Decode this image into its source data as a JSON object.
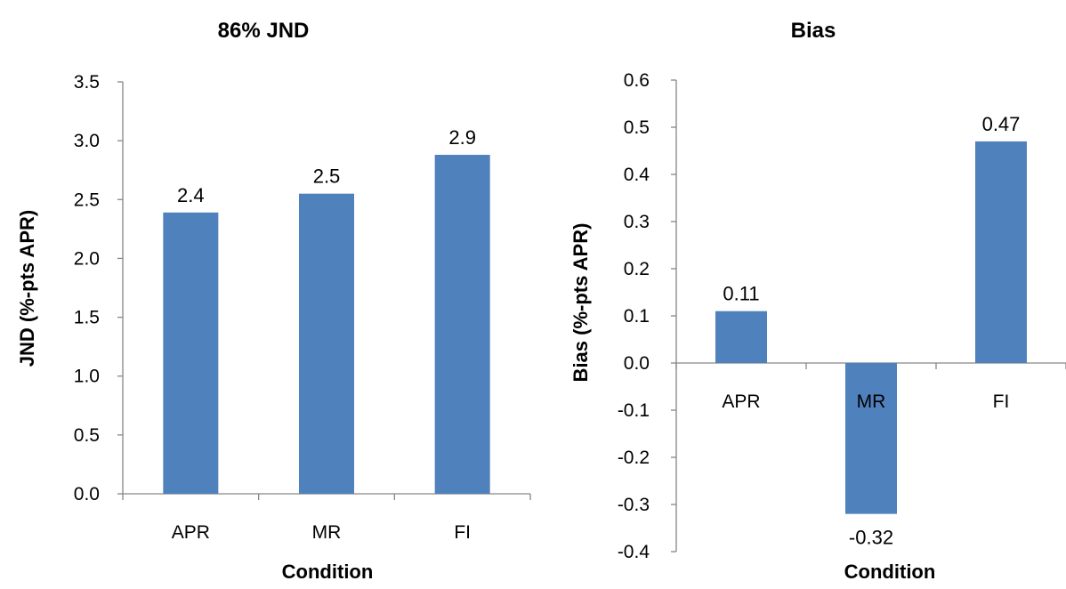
{
  "chart_data": [
    {
      "type": "bar",
      "title": "86% JND",
      "xlabel": "Condition",
      "ylabel": "JND (%-pts APR)",
      "categories": [
        "APR",
        "MR",
        "FI"
      ],
      "values": [
        2.39,
        2.55,
        2.88
      ],
      "data_labels": [
        "2.4",
        "2.5",
        "2.9"
      ],
      "ylim": [
        0,
        3.5
      ],
      "yticks": [
        "0.0",
        "0.5",
        "1.0",
        "1.5",
        "2.0",
        "2.5",
        "3.0",
        "3.5"
      ],
      "grid": false,
      "legend": "none",
      "bar_color": "#4f81bd"
    },
    {
      "type": "bar",
      "title": "Bias",
      "xlabel": "Condition",
      "ylabel": "Bias (%-pts APR)",
      "categories": [
        "APR",
        "MR",
        "FI"
      ],
      "values": [
        0.11,
        -0.32,
        0.47
      ],
      "data_labels": [
        "0.11",
        "-0.32",
        "0.47"
      ],
      "ylim": [
        -0.4,
        0.6
      ],
      "yticks": [
        "-0.4",
        "-0.3",
        "-0.2",
        "-0.1",
        "0.0",
        "0.1",
        "0.2",
        "0.3",
        "0.4",
        "0.5",
        "0.6"
      ],
      "grid": false,
      "legend": "none",
      "bar_color": "#4f81bd"
    }
  ]
}
